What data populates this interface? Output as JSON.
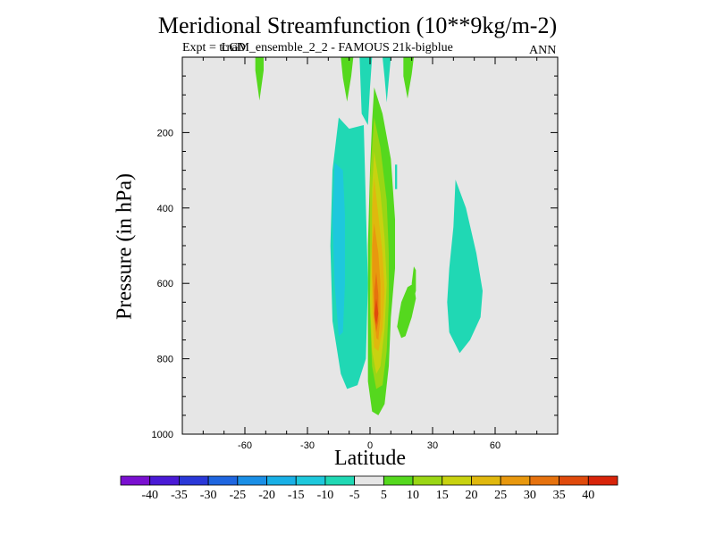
{
  "chart_data": {
    "type": "heatmap",
    "title": "Meridional Streamfunction (10**9kg/m-2)",
    "subtitle_label": "Expt = ",
    "subtitle_overprint": "tcnaD",
    "subtitle_rest": "LGM_ensemble_2_2 - FAMOUS 21k-bigblue",
    "period": "ANN",
    "xlabel": "Latitude",
    "ylabel": "Pressure (in hPa)",
    "xlim": [
      -90,
      90
    ],
    "ylim": [
      1000,
      0
    ],
    "x_ticks": [
      -60,
      -30,
      0,
      30,
      60
    ],
    "x_tick_labels": [
      "-60",
      "-30",
      "0",
      "30",
      "60"
    ],
    "y_ticks": [
      200,
      400,
      600,
      800,
      1000
    ],
    "y_tick_labels": [
      "200",
      "400",
      "600",
      "800",
      "1000"
    ],
    "background_color": "#e6e6e6",
    "colorbar": {
      "labels": [
        "-40",
        "-35",
        "-30",
        "-25",
        "-20",
        "-15",
        "-10",
        "-5",
        "5",
        "10",
        "15",
        "20",
        "25",
        "30",
        "35",
        "40"
      ],
      "colors": [
        "#7a10d0",
        "#4a1ad6",
        "#2a38d8",
        "#1f66e0",
        "#1a8fe6",
        "#19b0e6",
        "#1ec8dc",
        "#20d8b4",
        "#e6e6e6",
        "#55d81e",
        "#9ad614",
        "#c8d210",
        "#e0b80e",
        "#e8980e",
        "#e6720e",
        "#e04a0c",
        "#d8240a"
      ]
    },
    "regions": [
      {
        "name": "Upper green blob near -55",
        "level": "5 to 10",
        "color": "#55d81e",
        "points": [
          [
            -55,
            0
          ],
          [
            -51,
            0
          ],
          [
            -51,
            35
          ],
          [
            -53,
            115
          ],
          [
            -55,
            35
          ]
        ]
      },
      {
        "name": "Upper green blob near -13",
        "level": "5 to 10",
        "color": "#55d81e",
        "points": [
          [
            -14,
            0
          ],
          [
            -8,
            0
          ],
          [
            -9,
            50
          ],
          [
            -11,
            118
          ],
          [
            -13,
            55
          ]
        ]
      },
      {
        "name": "Upper green blob near 19",
        "level": "5 to 10",
        "color": "#55d81e",
        "points": [
          [
            16,
            0
          ],
          [
            21,
            0
          ],
          [
            20,
            45
          ],
          [
            18,
            110
          ],
          [
            16,
            50
          ]
        ]
      },
      {
        "name": "Upper cyan column near -2",
        "level": "-10 to -5",
        "color": "#20d8b4",
        "points": [
          [
            -5,
            0
          ],
          [
            1,
            0
          ],
          [
            0,
            80
          ],
          [
            -1,
            180
          ],
          [
            -4,
            150
          ]
        ]
      },
      {
        "name": "Upper cyan sliver near 8",
        "level": "-10 to -5",
        "color": "#20d8b4",
        "points": [
          [
            6,
            0
          ],
          [
            10,
            0
          ],
          [
            9,
            60
          ],
          [
            8,
            120
          ],
          [
            7,
            55
          ]
        ]
      },
      {
        "name": "Small cyan lens near 13",
        "level": "-10 to -5",
        "color": "#20d8b4",
        "points": [
          [
            12,
            285
          ],
          [
            13,
            285
          ],
          [
            13,
            350
          ],
          [
            12,
            350
          ]
        ]
      },
      {
        "name": "Left negative cell outer",
        "level": "-10 to -5",
        "color": "#20d8b4",
        "points": [
          [
            -15,
            160
          ],
          [
            -10,
            190
          ],
          [
            -3,
            180
          ],
          [
            -1,
            600
          ],
          [
            -2,
            800
          ],
          [
            -6,
            870
          ],
          [
            -11,
            880
          ],
          [
            -14,
            840
          ],
          [
            -18,
            700
          ],
          [
            -19,
            500
          ],
          [
            -18,
            300
          ]
        ]
      },
      {
        "name": "Left negative cell core",
        "level": "-15 to -10",
        "color": "#1ec8dc",
        "points": [
          [
            -17,
            280
          ],
          [
            -13,
            300
          ],
          [
            -12,
            420
          ],
          [
            -12,
            600
          ],
          [
            -13,
            730
          ],
          [
            -15,
            740
          ],
          [
            -17,
            600
          ],
          [
            -18,
            430
          ]
        ]
      },
      {
        "name": "Right negative cell",
        "level": "-10 to -5",
        "color": "#20d8b4",
        "points": [
          [
            41,
            325
          ],
          [
            46,
            400
          ],
          [
            51,
            520
          ],
          [
            54,
            620
          ],
          [
            53,
            690
          ],
          [
            48,
            750
          ],
          [
            43,
            785
          ],
          [
            38,
            730
          ],
          [
            37,
            650
          ],
          [
            38,
            560
          ],
          [
            40,
            450
          ]
        ]
      },
      {
        "name": "Green blob near 18",
        "level": "5 to 10",
        "color": "#55d81e",
        "points": [
          [
            21,
            600
          ],
          [
            22,
            640
          ],
          [
            20,
            690
          ],
          [
            17,
            740
          ],
          [
            15,
            745
          ],
          [
            13,
            715
          ],
          [
            14,
            680
          ],
          [
            15,
            650
          ],
          [
            18,
            610
          ]
        ]
      },
      {
        "name": "Small green wisp near 22",
        "level": "5 to 10",
        "color": "#55d81e",
        "points": [
          [
            21,
            555
          ],
          [
            22,
            565
          ],
          [
            22,
            620
          ],
          [
            21,
            640
          ],
          [
            20,
            600
          ]
        ]
      },
      {
        "name": "Positive tongue outer",
        "level": "5 to 10",
        "color": "#55d81e",
        "points": [
          [
            2,
            80
          ],
          [
            6,
            150
          ],
          [
            10,
            270
          ],
          [
            12,
            430
          ],
          [
            12,
            560
          ],
          [
            10,
            690
          ],
          [
            9,
            820
          ],
          [
            7,
            920
          ],
          [
            4,
            950
          ],
          [
            1,
            940
          ],
          [
            -1,
            860
          ],
          [
            -1,
            700
          ],
          [
            -1,
            500
          ],
          [
            0,
            300
          ],
          [
            1,
            170
          ]
        ]
      },
      {
        "name": "Positive tongue 10-15",
        "level": "10 to 15",
        "color": "#9ad614",
        "points": [
          [
            2,
            160
          ],
          [
            5,
            240
          ],
          [
            8,
            380
          ],
          [
            9,
            520
          ],
          [
            9,
            650
          ],
          [
            8,
            780
          ],
          [
            6,
            870
          ],
          [
            3,
            880
          ],
          [
            1,
            820
          ],
          [
            0,
            680
          ],
          [
            0,
            500
          ],
          [
            0,
            320
          ]
        ]
      },
      {
        "name": "Positive tongue 15-20",
        "level": "15 to 20",
        "color": "#c8d210",
        "points": [
          [
            2,
            250
          ],
          [
            5,
            360
          ],
          [
            7,
            480
          ],
          [
            8,
            600
          ],
          [
            7,
            720
          ],
          [
            5,
            820
          ],
          [
            3,
            840
          ],
          [
            1,
            780
          ],
          [
            0,
            640
          ],
          [
            1,
            470
          ],
          [
            1,
            350
          ]
        ]
      },
      {
        "name": "Positive tongue 20-25",
        "level": "20 to 25",
        "color": "#e0b80e",
        "points": [
          [
            2,
            320
          ],
          [
            4,
            420
          ],
          [
            6,
            520
          ],
          [
            7,
            620
          ],
          [
            6,
            720
          ],
          [
            4,
            780
          ],
          [
            2,
            770
          ],
          [
            1,
            660
          ],
          [
            1,
            520
          ],
          [
            1,
            400
          ]
        ]
      },
      {
        "name": "Positive tongue 25-30",
        "level": "25 to 30",
        "color": "#e8980e",
        "points": [
          [
            2,
            440
          ],
          [
            4,
            520
          ],
          [
            5,
            600
          ],
          [
            5,
            690
          ],
          [
            4,
            750
          ],
          [
            3,
            745
          ],
          [
            2,
            680
          ],
          [
            1,
            580
          ],
          [
            1,
            500
          ]
        ]
      },
      {
        "name": "Positive tongue 30-35",
        "level": "30 to 35",
        "color": "#e6720e",
        "points": [
          [
            3,
            570
          ],
          [
            4,
            630
          ],
          [
            4,
            700
          ],
          [
            3,
            730
          ],
          [
            2,
            690
          ],
          [
            2,
            620
          ]
        ]
      },
      {
        "name": "Positive tongue 35-40",
        "level": "35 to 40",
        "color": "#e04a0c",
        "points": [
          [
            3,
            640
          ],
          [
            4,
            680
          ],
          [
            3,
            710
          ],
          [
            2,
            680
          ]
        ]
      }
    ]
  }
}
